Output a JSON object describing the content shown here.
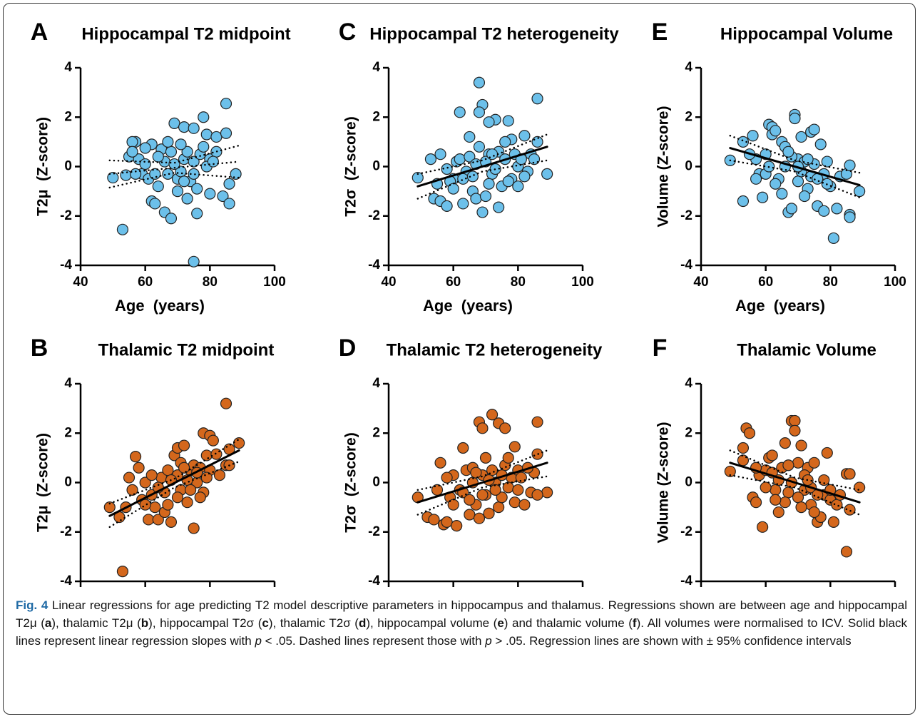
{
  "chart_data": [
    {
      "type": "scatter",
      "label": "A",
      "title": "Hippocampal T2 midpoint",
      "xlabel": "Age  (years)",
      "ylabel": "T2μ  (Z-score)",
      "color": "#6cc0ea",
      "xlim": [
        40,
        100
      ],
      "ylim": [
        -4,
        4
      ],
      "xticks": [
        40,
        60,
        80,
        100
      ],
      "yticks": [
        -4,
        -2,
        0,
        2,
        4
      ],
      "x": [
        53,
        75,
        85,
        78,
        69,
        72,
        75,
        57,
        56,
        62,
        60,
        65,
        68,
        50,
        54,
        55,
        58,
        59,
        61,
        62,
        63,
        64,
        66,
        68,
        70,
        70,
        71,
        72,
        73,
        74,
        75,
        76,
        76,
        77,
        78,
        79,
        80,
        80,
        82,
        82,
        84,
        85,
        86,
        86,
        88,
        60,
        66,
        67,
        69,
        73,
        64,
        57,
        72,
        79,
        81,
        63,
        67,
        71,
        75,
        56
      ],
      "values": [
        -2.55,
        -3.85,
        2.55,
        2.0,
        1.75,
        1.6,
        1.55,
        1.0,
        1.0,
        0.9,
        0.75,
        0.7,
        0.6,
        -0.45,
        -0.35,
        0.4,
        0.3,
        -0.3,
        -0.5,
        -1.4,
        -1.5,
        -0.8,
        -1.85,
        -2.1,
        -0.5,
        -1.0,
        -0.2,
        0.3,
        0.6,
        -0.6,
        0.2,
        -1.9,
        -0.9,
        0.5,
        0.8,
        1.3,
        -1.1,
        0.3,
        0.6,
        1.2,
        -1.2,
        1.35,
        -0.7,
        -1.5,
        -0.3,
        0.1,
        0.2,
        -0.3,
        0.1,
        -1.3,
        0.4,
        -0.3,
        -0.6,
        0.0,
        0.2,
        -0.3,
        1.0,
        0.9,
        -0.3,
        0.6
      ],
      "fit": {
        "x": [
          49,
          69,
          89
        ],
        "values": [
          -0.3,
          -0.05,
          0.2
        ],
        "lower": [
          -0.85,
          -0.25,
          -0.45
        ],
        "upper": [
          0.25,
          0.15,
          0.85
        ],
        "style": "dotted"
      }
    },
    {
      "type": "scatter",
      "label": "C",
      "title": "Hippocampal T2 heterogeneity",
      "xlabel": "Age  (years)",
      "ylabel": "T2σ  (Z-score)",
      "color": "#6cc0ea",
      "xlim": [
        40,
        100
      ],
      "ylim": [
        -4,
        4
      ],
      "xticks": [
        40,
        60,
        80,
        100
      ],
      "yticks": [
        -4,
        -2,
        0,
        2,
        4
      ],
      "x": [
        68,
        86,
        69,
        68,
        62,
        73,
        77,
        71,
        65,
        78,
        82,
        86,
        89,
        49,
        53,
        56,
        54,
        56,
        58,
        60,
        61,
        62,
        63,
        64,
        66,
        67,
        69,
        70,
        71,
        72,
        74,
        74,
        75,
        76,
        78,
        79,
        80,
        81,
        83,
        84,
        85,
        58,
        59,
        65,
        67,
        70,
        72,
        76,
        63,
        55,
        60,
        66,
        73,
        77,
        80,
        82,
        68,
        71
      ],
      "values": [
        3.4,
        2.75,
        2.5,
        2.2,
        2.2,
        1.9,
        1.85,
        1.8,
        1.2,
        1.1,
        1.25,
        1.0,
        -0.3,
        -0.45,
        0.3,
        0.5,
        -1.3,
        -1.4,
        -1.6,
        -0.5,
        0.2,
        0.3,
        -1.5,
        -0.2,
        -1.0,
        -1.3,
        -1.85,
        -1.2,
        0.5,
        -0.3,
        -1.65,
        0.6,
        -0.8,
        1.0,
        -0.5,
        0.5,
        0.0,
        0.3,
        -0.2,
        0.5,
        0.3,
        -0.1,
        -0.6,
        0.4,
        0.1,
        0.2,
        0.5,
        0.3,
        -0.5,
        -0.7,
        -0.9,
        -0.4,
        -0.1,
        -0.6,
        -0.8,
        -0.4,
        0.8,
        -0.7
      ],
      "fit": {
        "x": [
          49,
          69,
          89
        ],
        "values": [
          -0.8,
          0.0,
          0.8
        ],
        "lower": [
          -1.3,
          -0.2,
          0.25
        ],
        "upper": [
          -0.3,
          0.25,
          1.3
        ],
        "style": "solid"
      }
    },
    {
      "type": "scatter",
      "label": "E",
      "title": "Hippocampal Volume",
      "xlabel": "Age  (years)",
      "ylabel": "Volume (Z-score)",
      "color": "#6cc0ea",
      "xlim": [
        40,
        100
      ],
      "ylim": [
        -4,
        4
      ],
      "xticks": [
        40,
        60,
        80,
        100
      ],
      "yticks": [
        -4,
        -2,
        0,
        2,
        4
      ],
      "x": [
        49,
        53,
        53,
        56,
        57,
        55,
        58,
        59,
        60,
        61,
        62,
        62,
        63,
        64,
        65,
        66,
        67,
        68,
        69,
        69,
        70,
        70,
        71,
        72,
        73,
        74,
        75,
        75,
        76,
        77,
        78,
        78,
        79,
        80,
        81,
        82,
        83,
        85,
        86,
        86,
        86,
        89,
        60,
        63,
        66,
        68,
        71,
        73,
        74,
        76,
        79,
        65,
        67,
        70,
        72,
        57,
        61
      ],
      "values": [
        0.25,
        -1.4,
        1.0,
        1.25,
        0.3,
        0.5,
        -0.3,
        -1.25,
        0.5,
        1.7,
        1.6,
        1.3,
        1.45,
        -0.5,
        1.0,
        0.8,
        -1.85,
        -1.7,
        2.1,
        1.95,
        0.3,
        -0.6,
        1.2,
        0.2,
        -0.9,
        1.4,
        1.5,
        0.1,
        -1.6,
        0.9,
        -1.8,
        -0.3,
        0.2,
        -0.8,
        -2.9,
        -1.7,
        -0.4,
        -0.3,
        -1.95,
        0.05,
        -2.05,
        -1.0,
        -0.3,
        -0.7,
        0.0,
        0.4,
        -0.2,
        0.3,
        -0.4,
        -0.5,
        -0.7,
        -1.1,
        0.6,
        0.0,
        -1.2,
        -0.5,
        0.0
      ],
      "fit": {
        "x": [
          49,
          69,
          89
        ],
        "values": [
          0.75,
          0.0,
          -0.75
        ],
        "lower": [
          0.25,
          -0.2,
          -1.25
        ],
        "upper": [
          1.25,
          0.25,
          -0.25
        ],
        "style": "solid"
      }
    },
    {
      "type": "scatter",
      "label": "B",
      "title": "Thalamic T2 midpoint",
      "xlabel": "Age  (years)",
      "ylabel": "T2μ  (Z-score)",
      "color": "#d4671c",
      "xlim": [
        40,
        100
      ],
      "ylim": [
        -4,
        4
      ],
      "xticks": [
        40,
        60,
        80,
        100
      ],
      "yticks": [
        -4,
        -2,
        0,
        2,
        4
      ],
      "x": [
        53,
        85,
        49,
        52,
        54,
        55,
        57,
        58,
        59,
        60,
        61,
        62,
        63,
        64,
        65,
        66,
        67,
        68,
        69,
        70,
        70,
        71,
        72,
        73,
        74,
        75,
        75,
        76,
        77,
        78,
        78,
        79,
        80,
        80,
        81,
        82,
        83,
        85,
        86,
        86,
        89,
        62,
        64,
        66,
        68,
        71,
        73,
        74,
        76,
        77,
        79,
        67,
        60,
        56,
        70,
        72
      ],
      "values": [
        -3.6,
        3.2,
        -1.0,
        -1.4,
        -1.0,
        0.2,
        1.05,
        0.6,
        -0.7,
        0.0,
        -1.5,
        -0.5,
        -1.0,
        -1.5,
        0.2,
        -0.4,
        0.5,
        -1.6,
        1.1,
        1.4,
        0.3,
        -0.3,
        1.5,
        -0.8,
        0.5,
        -1.85,
        0.7,
        0.0,
        0.6,
        2.0,
        -0.4,
        1.1,
        1.9,
        0.5,
        1.7,
        1.15,
        0.3,
        0.7,
        1.35,
        0.7,
        1.6,
        0.3,
        -0.2,
        -1.2,
        0.1,
        0.8,
        0.1,
        -0.3,
        0.4,
        -0.6,
        0.2,
        -0.9,
        -0.9,
        -0.3,
        -0.6,
        0.6
      ],
      "fit": {
        "x": [
          49,
          69,
          89
        ],
        "values": [
          -1.35,
          -0.02,
          1.3
        ],
        "lower": [
          -1.8,
          -0.2,
          0.85
        ],
        "upper": [
          -0.85,
          0.15,
          1.75
        ],
        "style": "solid"
      }
    },
    {
      "type": "scatter",
      "label": "D",
      "title": "Thalamic T2 heterogeneity",
      "xlabel": "Age  (years)",
      "ylabel": "T2σ  (Z-score)",
      "color": "#d4671c",
      "xlim": [
        40,
        100
      ],
      "ylim": [
        -4,
        4
      ],
      "xticks": [
        40,
        60,
        80,
        100
      ],
      "yticks": [
        -4,
        -2,
        0,
        2,
        4
      ],
      "x": [
        72,
        68,
        74,
        69,
        86,
        76,
        63,
        70,
        79,
        86,
        89,
        49,
        52,
        54,
        57,
        58,
        59,
        60,
        61,
        62,
        64,
        65,
        66,
        67,
        68,
        69,
        70,
        71,
        72,
        73,
        74,
        75,
        76,
        77,
        78,
        79,
        80,
        81,
        82,
        84,
        85,
        86,
        55,
        56,
        58,
        63,
        66,
        67,
        71,
        73,
        75,
        77,
        60,
        65,
        69,
        80,
        83
      ],
      "values": [
        2.75,
        2.45,
        2.4,
        2.2,
        2.45,
        2.2,
        1.4,
        1.0,
        1.45,
        1.15,
        -0.4,
        -0.6,
        -1.4,
        -1.5,
        -1.7,
        -1.6,
        -0.6,
        0.3,
        -1.75,
        -0.3,
        0.5,
        -1.3,
        0.0,
        -0.9,
        -1.45,
        0.3,
        -0.5,
        -1.25,
        0.5,
        0.0,
        -1.0,
        -0.6,
        0.7,
        1.0,
        0.2,
        -0.8,
        0.5,
        0.2,
        -0.9,
        -0.4,
        0.4,
        -0.5,
        -0.3,
        0.8,
        0.2,
        -0.4,
        0.6,
        0.4,
        0.1,
        -0.3,
        0.3,
        -0.2,
        -0.9,
        -0.7,
        -0.5,
        -0.3,
        0.6
      ],
      "fit": {
        "x": [
          49,
          69,
          89
        ],
        "values": [
          -0.8,
          0.0,
          0.8
        ],
        "lower": [
          -1.3,
          -0.2,
          0.25
        ],
        "upper": [
          -0.3,
          0.25,
          1.3
        ],
        "style": "solid"
      }
    },
    {
      "type": "scatter",
      "label": "F",
      "title": "Thalamic Volume",
      "xlabel": "Age  (years)",
      "ylabel": "Volume (Z-score)",
      "color": "#d4671c",
      "xlim": [
        40,
        100
      ],
      "ylim": [
        -4,
        4
      ],
      "xticks": [
        40,
        60,
        80,
        100
      ],
      "yticks": [
        -4,
        -2,
        0,
        2,
        4
      ],
      "x": [
        49,
        53,
        54,
        55,
        53,
        56,
        57,
        58,
        59,
        60,
        61,
        62,
        63,
        64,
        65,
        66,
        67,
        68,
        69,
        69,
        70,
        71,
        72,
        73,
        74,
        75,
        76,
        77,
        78,
        79,
        80,
        81,
        82,
        85,
        85,
        86,
        86,
        89,
        60,
        62,
        64,
        66,
        68,
        70,
        72,
        74,
        76,
        78,
        80,
        57,
        63,
        67,
        71,
        73,
        75,
        83
      ],
      "values": [
        0.45,
        1.4,
        2.2,
        2.0,
        0.9,
        -0.6,
        -0.8,
        0.3,
        -1.8,
        0.5,
        1.0,
        0.4,
        -0.3,
        -1.2,
        0.6,
        1.6,
        -0.4,
        2.5,
        2.5,
        2.1,
        0.8,
        1.5,
        -0.3,
        0.6,
        -0.9,
        0.8,
        -1.6,
        -1.4,
        -0.5,
        1.2,
        -0.7,
        -1.6,
        -0.9,
        -2.8,
        0.35,
        0.35,
        -1.1,
        -0.2,
        -0.2,
        1.1,
        0.1,
        -0.8,
        0.0,
        -0.6,
        0.3,
        -0.2,
        -0.5,
        0.1,
        -0.3,
        0.6,
        -0.7,
        0.7,
        -1.0,
        0.1,
        -1.2,
        -0.5
      ],
      "fit": {
        "x": [
          49,
          69,
          89
        ],
        "values": [
          0.8,
          0.0,
          -0.8
        ],
        "lower": [
          0.3,
          -0.2,
          -1.3
        ],
        "upper": [
          1.3,
          0.2,
          -0.3
        ],
        "style": "solid"
      }
    }
  ],
  "caption": {
    "label": "Fig. 4",
    "parts": [
      " Linear regressions for age predicting T2 model descriptive parameters in hippocampus and thalamus. Regressions shown are between age and hippocampal T2μ (",
      "a",
      "), thalamic T2μ (",
      "b",
      "), hippocampal T2σ (",
      "c",
      "), thalamic T2σ (",
      "d",
      "), hippocampal volume (",
      "e",
      ") and thalamic volume (",
      "f",
      "). All volumes were normalised to ICV. Solid black lines represent linear regression slopes with ",
      "p",
      " < .05. Dashed lines represent those with ",
      "p",
      " > .05. Regression lines are shown with ± 95% confidence intervals"
    ]
  }
}
